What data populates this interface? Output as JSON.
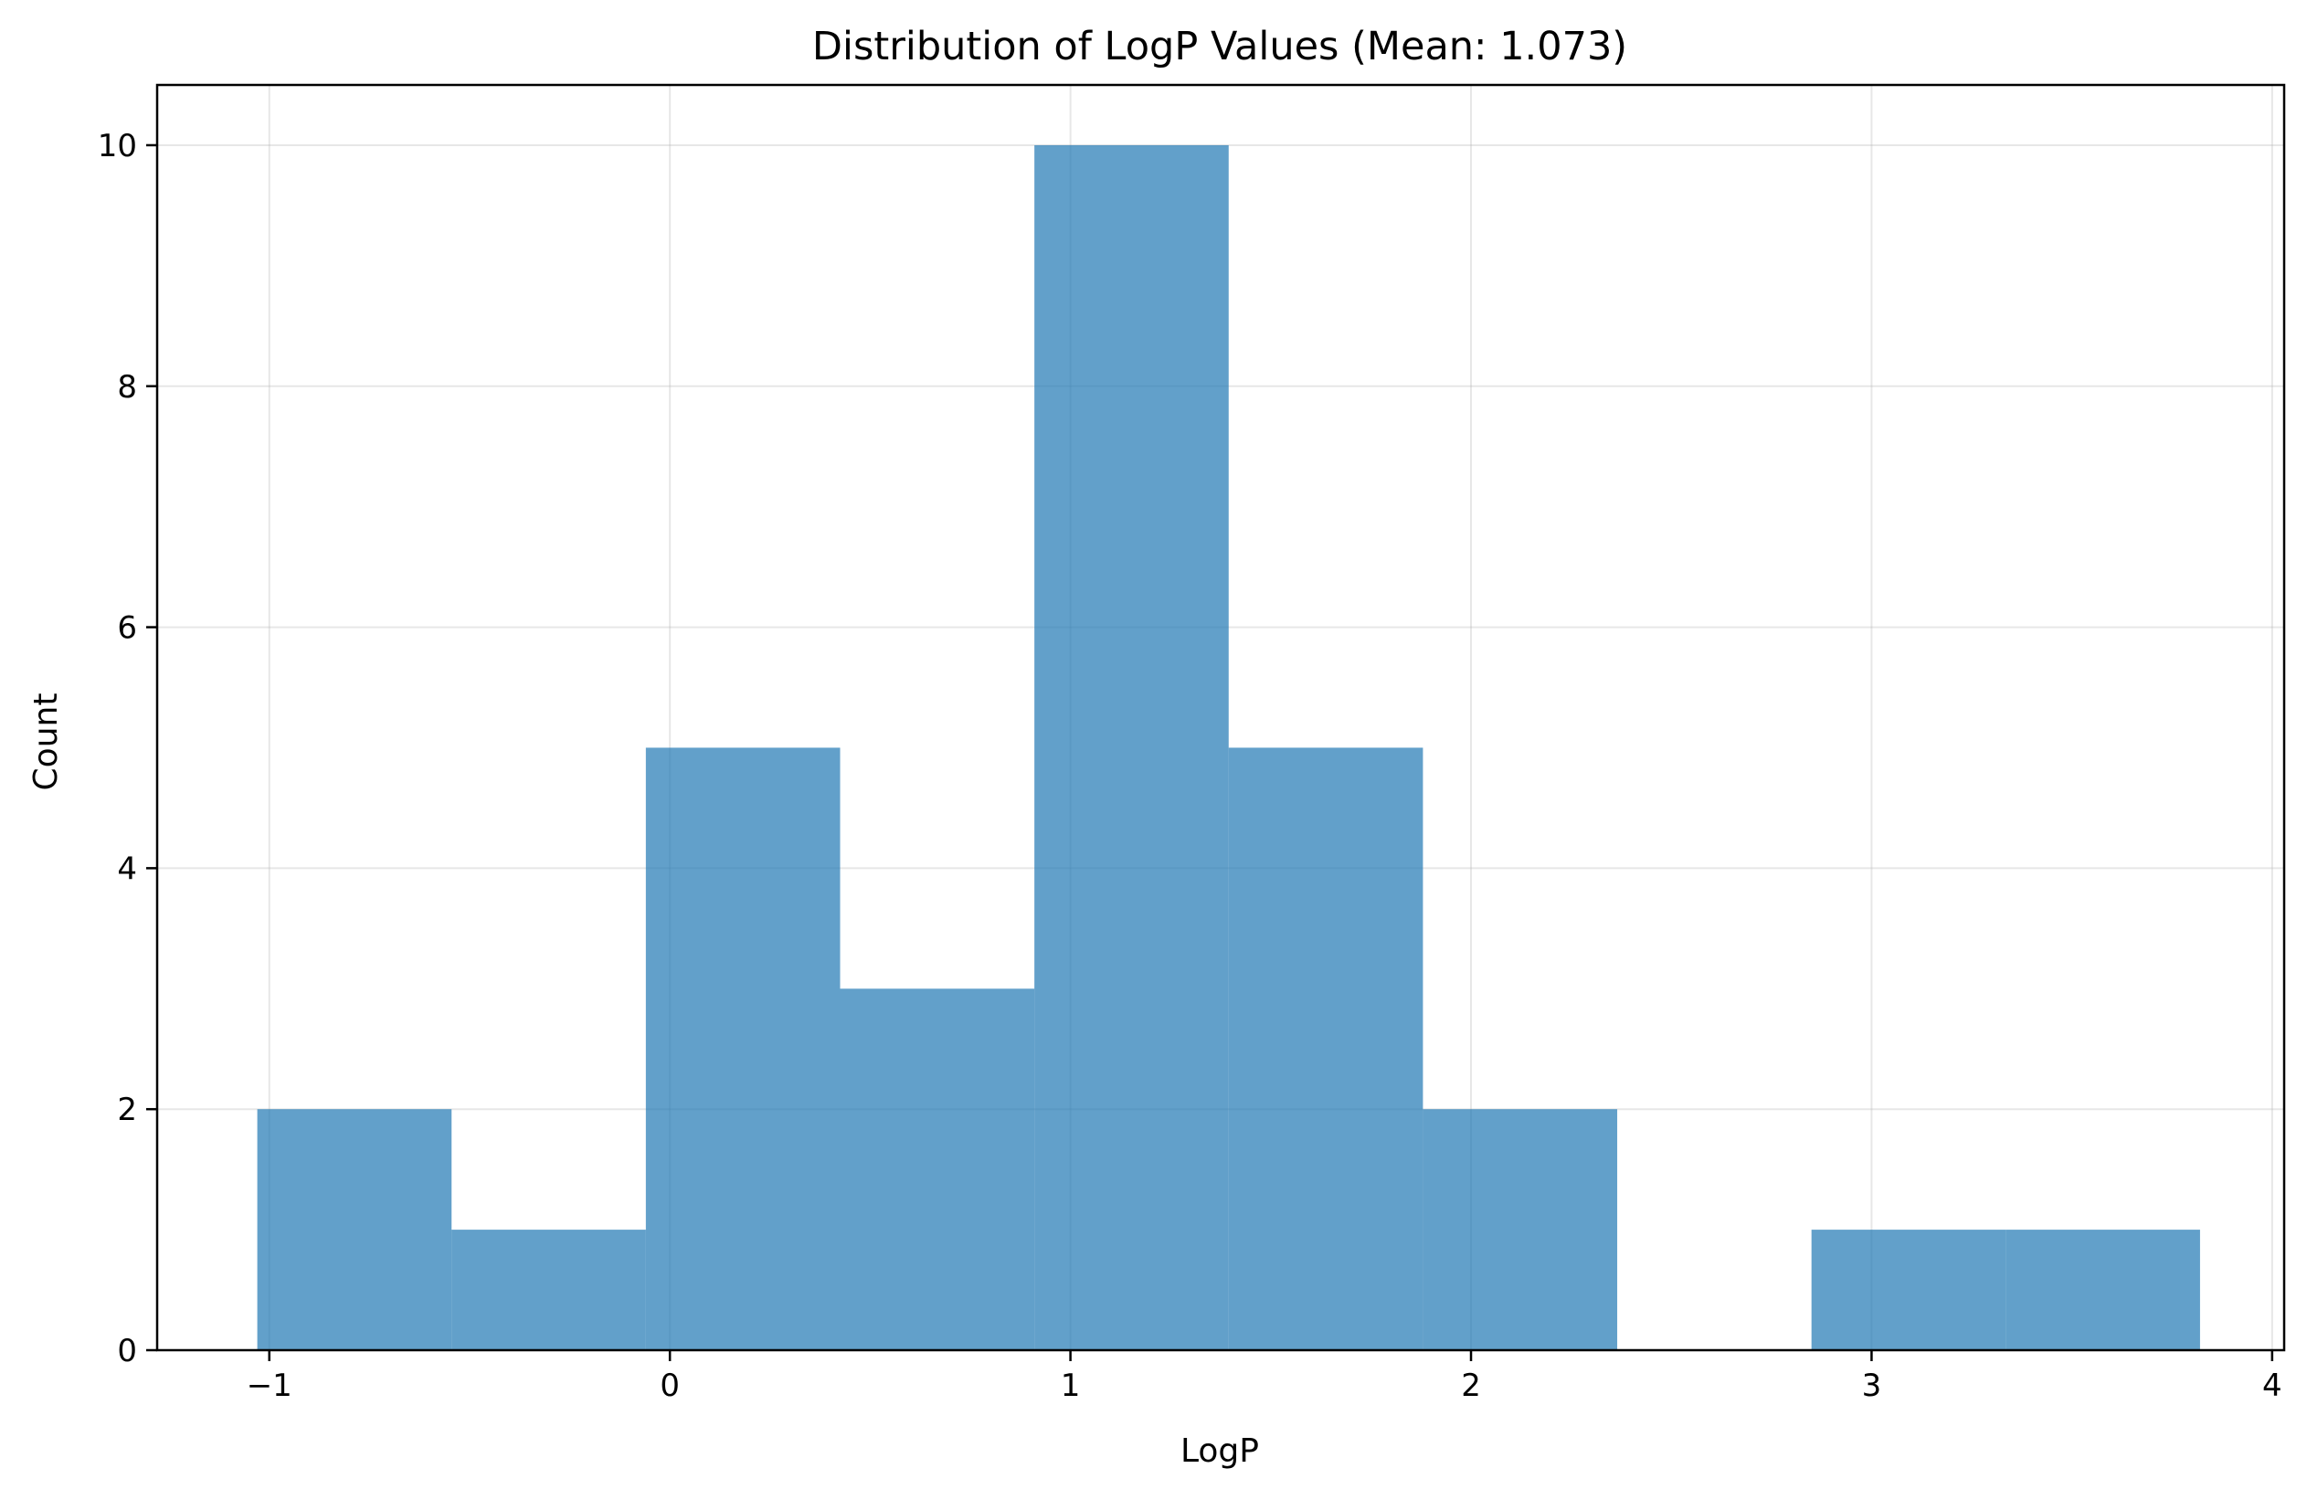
{
  "chart_data": {
    "type": "bar",
    "title": "Distribution of LogP Values (Mean: 1.073)",
    "xlabel": "LogP",
    "ylabel": "Count",
    "xlim": [
      -1.28,
      4.03
    ],
    "ylim": [
      0,
      10.5
    ],
    "x_ticks": [
      -1,
      0,
      1,
      2,
      3,
      4
    ],
    "x_tick_labels": [
      "−1",
      "0",
      "1",
      "2",
      "3",
      "4"
    ],
    "y_ticks": [
      0,
      2,
      4,
      6,
      8,
      10
    ],
    "y_tick_labels": [
      "0",
      "2",
      "4",
      "6",
      "8",
      "10"
    ],
    "grid": true,
    "bar_color": "#1f77b4",
    "bar_opacity": 0.7,
    "bins": [
      {
        "x0": -1.03,
        "x1": -0.545,
        "count": 2
      },
      {
        "x0": -0.545,
        "x1": -0.06,
        "count": 1
      },
      {
        "x0": -0.06,
        "x1": 0.425,
        "count": 5
      },
      {
        "x0": 0.425,
        "x1": 0.91,
        "count": 3
      },
      {
        "x0": 0.91,
        "x1": 1.395,
        "count": 10
      },
      {
        "x0": 1.395,
        "x1": 1.88,
        "count": 5
      },
      {
        "x0": 1.88,
        "x1": 2.365,
        "count": 2
      },
      {
        "x0": 2.365,
        "x1": 2.85,
        "count": 0
      },
      {
        "x0": 2.85,
        "x1": 3.335,
        "count": 1
      },
      {
        "x0": 3.335,
        "x1": 3.82,
        "count": 1
      }
    ]
  }
}
